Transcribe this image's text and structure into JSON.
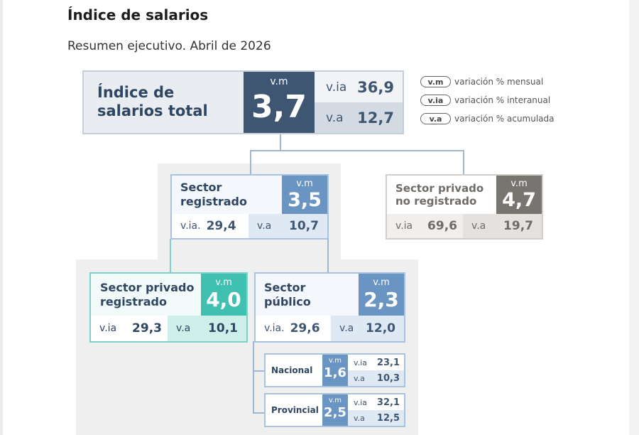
{
  "title": "Índice de salarios",
  "subtitle": "Resumen ejecutivo. Abril de 2026",
  "legend": [
    {
      "tag": "v.m",
      "text": "variación % mensual"
    },
    {
      "tag": "v.ia",
      "text": "variación % interanual"
    },
    {
      "tag": "v.a",
      "text": "variación % acumulada"
    }
  ],
  "total": {
    "label_line1": "Índice de",
    "label_line2": "salarios total",
    "vm_tag": "v.m",
    "vm": "3,7",
    "via_tag": "v.ia",
    "via": "36,9",
    "va_tag": "v.a",
    "va": "12,7"
  },
  "registrado": {
    "label_line1": "Sector",
    "label_line2": "registrado",
    "vm_tag": "v.m",
    "vm": "3,5",
    "via_tag": "v.ia.",
    "via": "29,4",
    "va_tag": "v.a",
    "va": "10,7"
  },
  "no_registrado": {
    "label_line1": "Sector privado",
    "label_line2": "no registrado",
    "vm_tag": "v.m",
    "vm": "4,7",
    "via_tag": "v.ia",
    "via": "69,6",
    "va_tag": "v.a",
    "va": "19,7"
  },
  "privado_registrado": {
    "label_line1": "Sector privado",
    "label_line2": "registrado",
    "vm_tag": "v.m",
    "vm": "4,0",
    "via_tag": "v.ia",
    "via": "29,3",
    "va_tag": "v.a",
    "va": "10,1"
  },
  "publico": {
    "label_line1": "Sector",
    "label_line2": "público",
    "vm_tag": "v.m",
    "vm": "2,3",
    "via_tag": "v.ia.",
    "via": "29,6",
    "va_tag": "v.a",
    "va": "12,0"
  },
  "nacional": {
    "label": "Nacional",
    "vm_tag": "v.m",
    "vm": "1,6",
    "via_tag": "v.ia",
    "via": "23,1",
    "va_tag": "v.a",
    "va": "10,3"
  },
  "provincial": {
    "label": "Provincial",
    "vm_tag": "v.m",
    "vm": "2,5",
    "via_tag": "v.ia",
    "via": "32,1",
    "va_tag": "v.a",
    "va": "12,5"
  },
  "colors": {
    "navy": "#3e5672",
    "steel": "#6a94c2",
    "teal": "#3fc0b0",
    "gray": "#787470"
  }
}
